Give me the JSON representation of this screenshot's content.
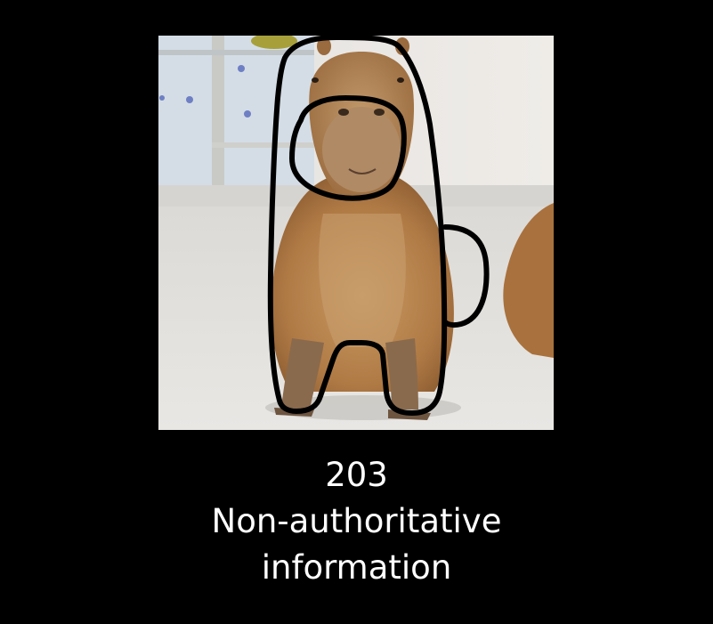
{
  "caption": {
    "code": "203",
    "line1": "Non-authoritative",
    "line2": "information"
  },
  "photo": {
    "subject": "capybara-with-crewmate-outline-drawing"
  },
  "colors": {
    "background": "#000000",
    "caption_text": "#ffffff",
    "fur": "#b98652",
    "outline": "#000000"
  }
}
